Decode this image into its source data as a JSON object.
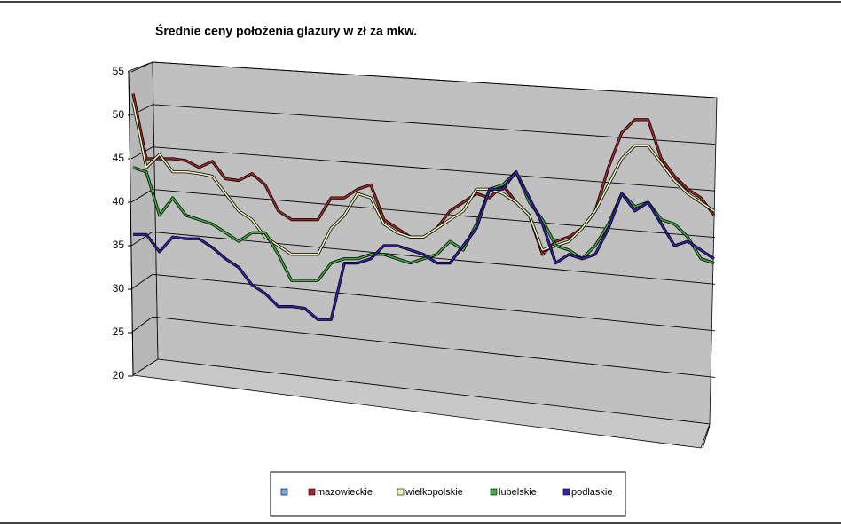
{
  "chart_data": {
    "type": "line",
    "title": "Średnie ceny położenia glazury w zł za mkw.",
    "ylim": [
      20,
      55
    ],
    "yticks": [
      20,
      25,
      30,
      35,
      40,
      45,
      50,
      55
    ],
    "grid": true,
    "legend": "bottom",
    "series": [
      {
        "name": "mazowieckie",
        "color": "#a52a2a",
        "values": [
          52.5,
          45,
          45,
          45,
          44.8,
          44,
          44.7,
          42.7,
          42.5,
          43.3,
          42,
          39,
          38,
          38,
          38,
          40.5,
          40.5,
          41.5,
          42,
          38,
          37,
          36,
          36,
          37,
          39,
          40,
          41,
          40.5,
          42,
          40,
          38.5,
          34,
          35.5,
          36,
          37,
          39,
          44,
          48,
          49.5,
          49.5,
          45,
          43,
          41.5,
          40.5,
          38.5
        ]
      },
      {
        "name": "wielkopolskie",
        "color": "#f2f2b8",
        "values": [
          51.5,
          44,
          45.5,
          43.5,
          43.5,
          43.3,
          43,
          41,
          39,
          38,
          36,
          35,
          34,
          34,
          34,
          37,
          38.5,
          41,
          40.5,
          37.5,
          36.5,
          36,
          36,
          37,
          38,
          39,
          41.5,
          41.5,
          41,
          40,
          38.5,
          34.5,
          35,
          35.5,
          37,
          39,
          42,
          45,
          46.5,
          46.5,
          44.5,
          42.5,
          41,
          40,
          39
        ]
      },
      {
        "name": "lubelskie",
        "color": "#3cb043",
        "values": [
          44,
          43.5,
          38.5,
          40.5,
          38.5,
          38,
          37.5,
          36.5,
          35.5,
          36.5,
          36.5,
          34,
          31,
          31,
          31,
          33,
          33.5,
          33.5,
          34,
          34,
          33.5,
          33,
          33.5,
          34,
          35.5,
          34.5,
          37.5,
          41.5,
          42,
          43.5,
          40,
          38,
          35,
          34.5,
          33.5,
          35,
          37.5,
          41,
          39.5,
          40,
          38,
          37.5,
          36,
          33.5,
          33
        ]
      },
      {
        "name": "podlaskie",
        "color": "#3a1fb5",
        "values": [
          36.3,
          36.3,
          34.3,
          36,
          35.8,
          35.8,
          34.8,
          33.5,
          32.5,
          30.5,
          29.5,
          28,
          28,
          27.8,
          26.5,
          26.5,
          33,
          33,
          33.5,
          35,
          35,
          34.5,
          34,
          33,
          33,
          35,
          37,
          41.5,
          41.5,
          43.5,
          40.5,
          37.5,
          33,
          34,
          33.5,
          34,
          37,
          41,
          39,
          40,
          37.5,
          35,
          35.5,
          34.5,
          33.5
        ]
      }
    ]
  }
}
